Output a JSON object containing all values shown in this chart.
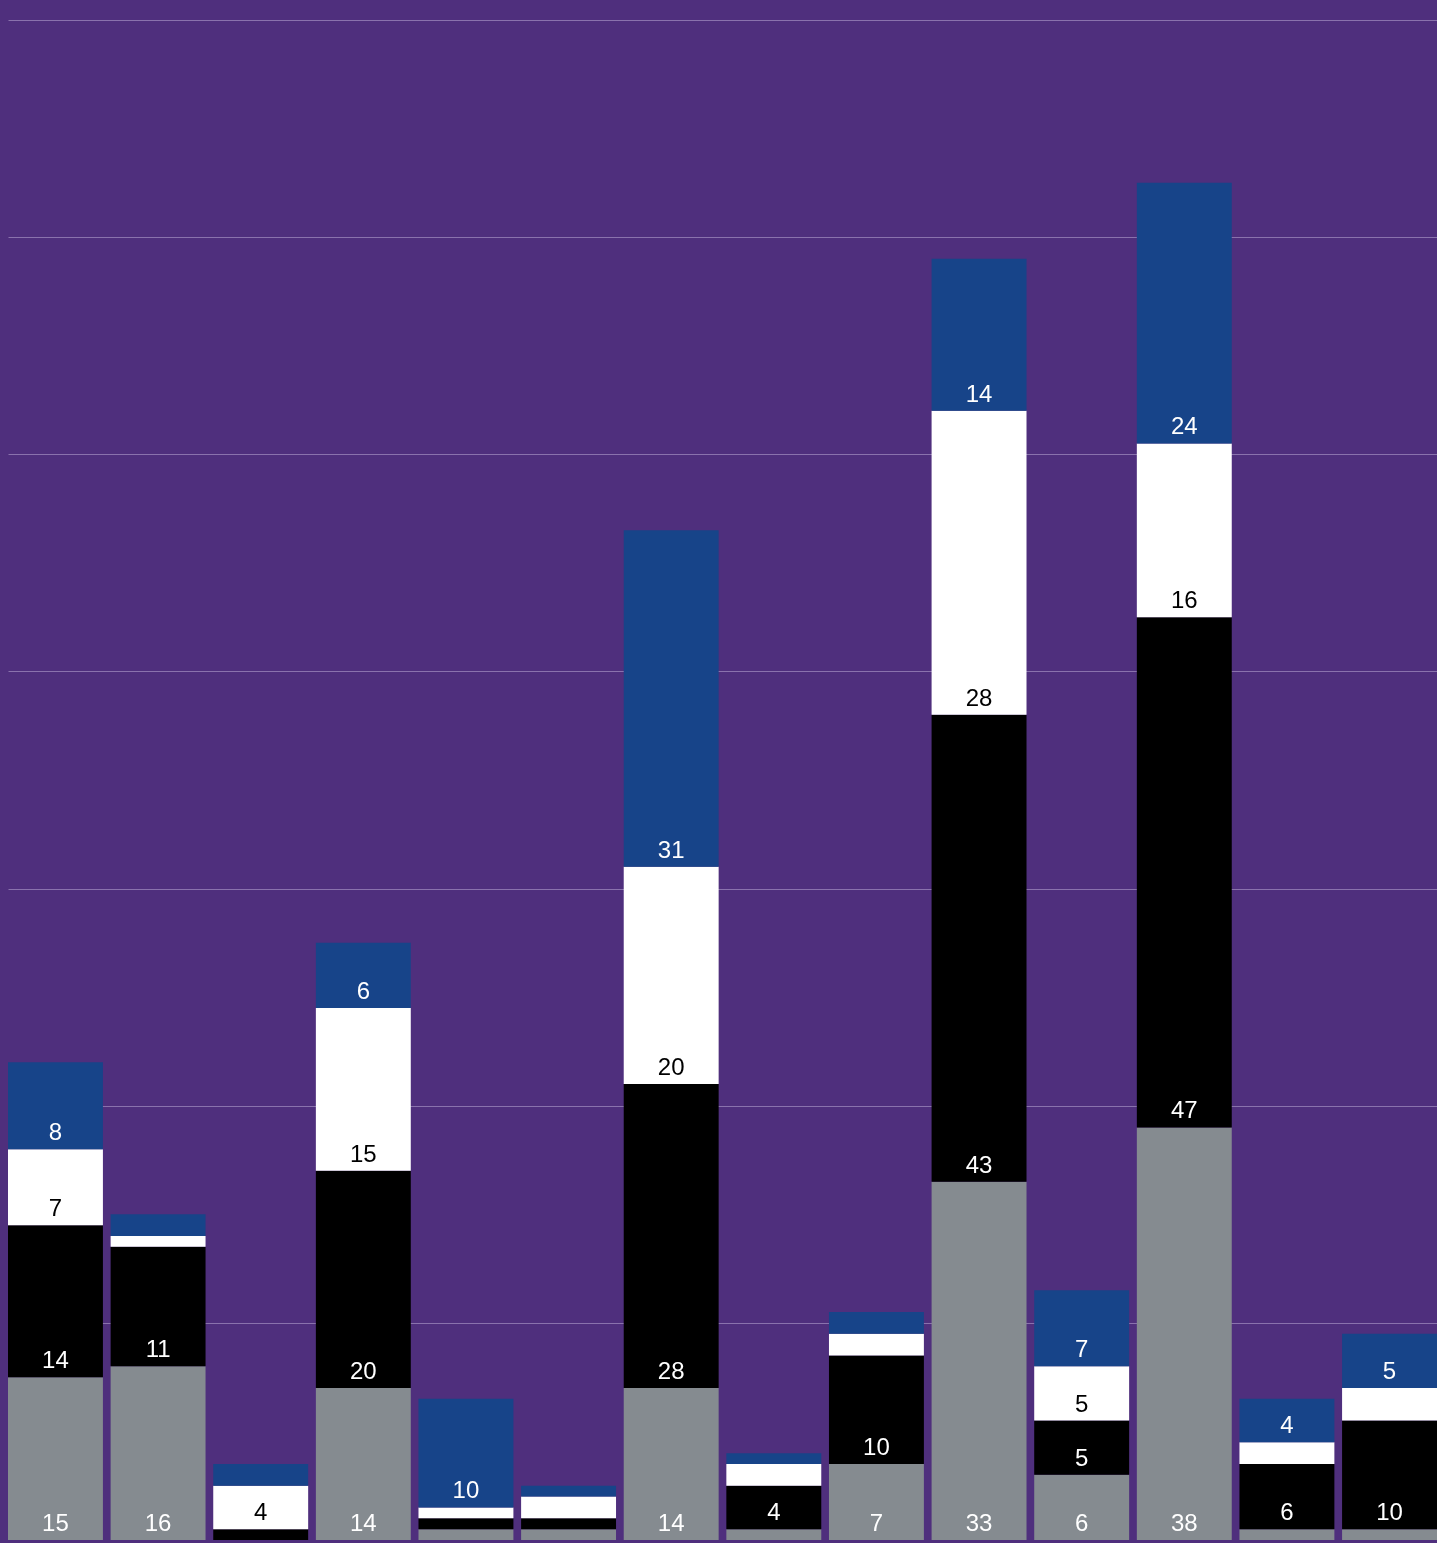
{
  "chart_data": {
    "type": "bar",
    "stacked": true,
    "categories": [
      null,
      null,
      null,
      null,
      null,
      null,
      null,
      null,
      null,
      null,
      null,
      null,
      null,
      null
    ],
    "series": [
      {
        "color": "#858b90",
        "values": [
          15,
          16,
          0,
          14,
          1,
          1,
          14,
          1,
          7,
          33,
          6,
          38,
          1,
          1
        ],
        "value_labels": [
          "15",
          "16",
          null,
          "14",
          null,
          null,
          "14",
          null,
          "7",
          "33",
          "6",
          "38",
          null,
          null
        ]
      },
      {
        "color": "#000000",
        "values": [
          14,
          11,
          1,
          20,
          1,
          1,
          28,
          4,
          10,
          43,
          5,
          47,
          6,
          10
        ],
        "value_labels": [
          "14",
          "11",
          null,
          "20",
          null,
          null,
          "28",
          "4",
          "10",
          "43",
          "5",
          "47",
          "6",
          "10"
        ]
      },
      {
        "color": "#ffffff",
        "values": [
          7,
          1,
          4,
          15,
          1,
          2,
          20,
          2,
          2,
          28,
          5,
          16,
          2,
          3
        ],
        "value_labels": [
          "7",
          null,
          "4",
          "15",
          null,
          null,
          "20",
          null,
          null,
          "28",
          "5",
          "16",
          null,
          null
        ]
      },
      {
        "color": "#174489",
        "values": [
          8,
          2,
          2,
          6,
          10,
          1,
          31,
          1,
          2,
          14,
          7,
          24,
          4,
          5
        ],
        "value_labels": [
          "8",
          null,
          null,
          "6",
          "10",
          null,
          "31",
          null,
          null,
          "14",
          "7",
          "24",
          "4",
          "5"
        ]
      }
    ],
    "ylim": [
      0,
      140
    ],
    "yticks": [
      {
        "value": 20,
        "label": null
      },
      {
        "value": 40,
        "label": null
      },
      {
        "value": 60,
        "label": null
      },
      {
        "value": 80,
        "label": null
      },
      {
        "value": 100,
        "label": null
      },
      {
        "value": 120,
        "label": null
      },
      {
        "value": 140,
        "label": null
      }
    ],
    "grid": true,
    "legend": false
  }
}
